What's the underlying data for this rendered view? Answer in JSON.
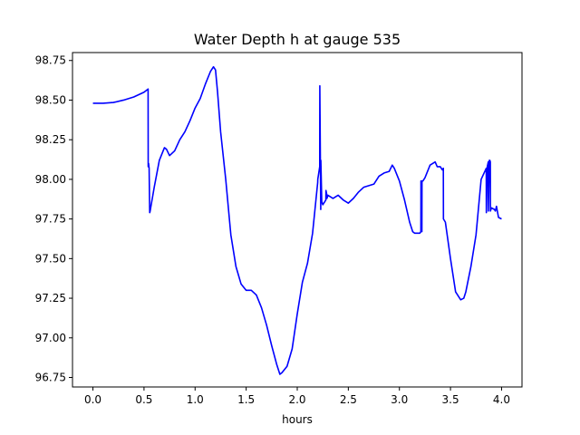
{
  "chart_data": {
    "type": "line",
    "title": "Water Depth h at gauge 535",
    "xlabel": "hours",
    "ylabel": "",
    "xlim": [
      -0.2,
      4.2
    ],
    "ylim": [
      96.69,
      98.8
    ],
    "xticks": [
      0.0,
      0.5,
      1.0,
      1.5,
      2.0,
      2.5,
      3.0,
      3.5,
      4.0
    ],
    "xtick_labels": [
      "0.0",
      "0.5",
      "1.0",
      "1.5",
      "2.0",
      "2.5",
      "3.0",
      "3.5",
      "4.0"
    ],
    "yticks": [
      96.75,
      97.0,
      97.25,
      97.5,
      97.75,
      98.0,
      98.25,
      98.5,
      98.75
    ],
    "ytick_labels": [
      "96.75",
      "97.00",
      "97.25",
      "97.50",
      "97.75",
      "98.00",
      "98.25",
      "98.50",
      "98.75"
    ],
    "grid": false,
    "series": [
      {
        "color": "#0000ff",
        "x": [
          0.0,
          0.1,
          0.2,
          0.3,
          0.4,
          0.5,
          0.54,
          0.541,
          0.545,
          0.55,
          0.555,
          0.556,
          0.56,
          0.6,
          0.65,
          0.7,
          0.72,
          0.75,
          0.8,
          0.85,
          0.9,
          0.95,
          1.0,
          1.05,
          1.1,
          1.15,
          1.18,
          1.2,
          1.22,
          1.25,
          1.3,
          1.35,
          1.4,
          1.45,
          1.5,
          1.55,
          1.6,
          1.65,
          1.7,
          1.75,
          1.8,
          1.83,
          1.85,
          1.9,
          1.95,
          2.0,
          2.05,
          2.1,
          2.15,
          2.2,
          2.201,
          2.22,
          2.221,
          2.23,
          2.231,
          2.24,
          2.25,
          2.27,
          2.28,
          2.281,
          2.29,
          2.291,
          2.3,
          2.35,
          2.4,
          2.45,
          2.5,
          2.55,
          2.6,
          2.65,
          2.7,
          2.75,
          2.8,
          2.85,
          2.9,
          2.93,
          2.95,
          3.0,
          3.05,
          3.1,
          3.13,
          3.15,
          3.2,
          3.21,
          3.211,
          3.22,
          3.221,
          3.23,
          3.25,
          3.3,
          3.35,
          3.37,
          3.4,
          3.42,
          3.43,
          3.431,
          3.45,
          3.5,
          3.55,
          3.6,
          3.63,
          3.65,
          3.7,
          3.75,
          3.8,
          3.85,
          3.851,
          3.86,
          3.87,
          3.871,
          3.88,
          3.885,
          3.89,
          3.891,
          3.9,
          3.93,
          3.94,
          3.95,
          3.97,
          4.0
        ],
        "y": [
          98.48,
          98.48,
          98.485,
          98.5,
          98.52,
          98.55,
          98.57,
          98.08,
          98.1,
          98.07,
          97.82,
          97.79,
          97.8,
          97.95,
          98.12,
          98.2,
          98.19,
          98.15,
          98.18,
          98.25,
          98.3,
          98.37,
          98.45,
          98.51,
          98.6,
          98.68,
          98.71,
          98.69,
          98.55,
          98.3,
          98.0,
          97.65,
          97.45,
          97.34,
          97.3,
          97.3,
          97.27,
          97.19,
          97.08,
          96.95,
          96.83,
          96.77,
          96.78,
          96.82,
          96.93,
          97.15,
          97.35,
          97.47,
          97.66,
          97.98,
          98.0,
          98.08,
          98.59,
          97.81,
          98.12,
          97.86,
          97.84,
          97.86,
          97.87,
          97.93,
          97.9,
          97.88,
          97.9,
          97.88,
          97.9,
          97.87,
          97.85,
          97.88,
          97.92,
          97.95,
          97.96,
          97.97,
          98.02,
          98.04,
          98.05,
          98.09,
          98.07,
          97.99,
          97.87,
          97.73,
          97.67,
          97.66,
          97.66,
          97.67,
          97.99,
          97.67,
          97.99,
          97.99,
          98.01,
          98.09,
          98.11,
          98.08,
          98.08,
          98.06,
          98.07,
          97.75,
          97.73,
          97.5,
          97.29,
          97.24,
          97.25,
          97.29,
          97.45,
          97.65,
          98.0,
          98.07,
          97.79,
          98.08,
          98.11,
          97.8,
          98.12,
          98.12,
          98.11,
          97.8,
          97.82,
          97.81,
          97.8,
          97.83,
          97.76,
          97.75
        ]
      }
    ]
  }
}
